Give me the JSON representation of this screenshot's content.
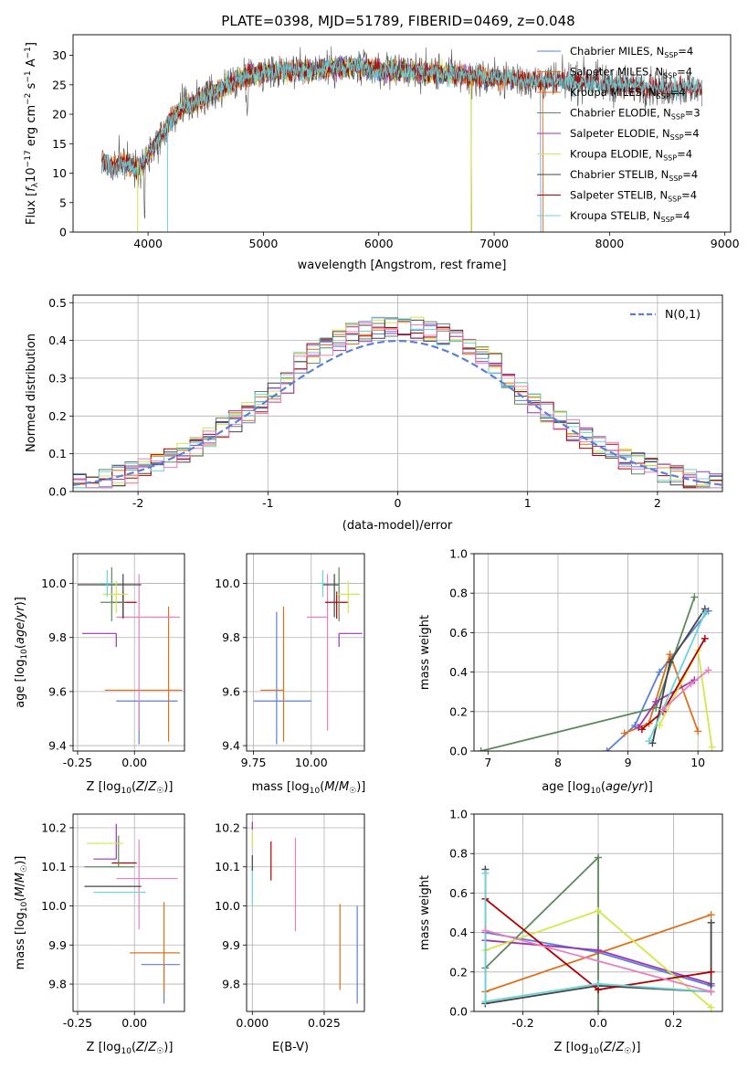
{
  "figure_title": "PLATE=0398, MJD=51789, FIBERID=0469, z=0.048",
  "colors": {
    "chabrier_miles": "#5b7fd6",
    "salpeter_miles": "#e0701a",
    "kroupa_miles": "#e0701a",
    "chabrier_elodie": "#5a8a5a",
    "salpeter_elodie": "#9b35b3",
    "kroupa_elodie": "#d4e64a",
    "chabrier_stelib": "#444444",
    "salpeter_stelib": "#b00000",
    "kroupa_stelib": "#6dd3d8",
    "extra_pink": "#e87fc0",
    "gaussian": "#5b7fd6"
  },
  "chart_data": [
    {
      "id": "spectrum",
      "type": "line",
      "title": "PLATE=0398, MJD=51789, FIBERID=0469, z=0.048",
      "xlabel": "wavelength [Angstrom, rest frame]",
      "ylabel": "Flux [f_λ 10^-17 erg cm^-2 s^-1 A^-1]",
      "xlim": [
        3350,
        9050
      ],
      "ylim": [
        0,
        33.5
      ],
      "xticks": [
        4000,
        5000,
        6000,
        7000,
        8000,
        9000
      ],
      "yticks": [
        0,
        5,
        10,
        15,
        20,
        25,
        30
      ],
      "grid": false,
      "legend_position": "upper-right",
      "continuum": {
        "x": [
          3600,
          3700,
          3800,
          3900,
          4000,
          4100,
          4200,
          4300,
          4400,
          4500,
          4600,
          4700,
          4800,
          4900,
          5000,
          5200,
          5400,
          5600,
          5800,
          6000,
          6200,
          6400,
          6600,
          6800,
          7000,
          7200,
          7400,
          7600,
          7800,
          8000,
          8200,
          8400,
          8600,
          8800
        ],
        "y": [
          12,
          11,
          12,
          10.5,
          13,
          16,
          19,
          21,
          22,
          23,
          24,
          25,
          26,
          27,
          27,
          27.5,
          27.5,
          28,
          28,
          27.5,
          27.5,
          27,
          27,
          26.5,
          26,
          26,
          25.5,
          25.5,
          25.5,
          25,
          25,
          24.5,
          24.5,
          24.5
        ]
      },
      "series": [
        {
          "name": "Chabrier MILES, N_SSP=4",
          "legend_main": "Chabrier MILES, N",
          "legend_sub": "SSP",
          "legend_tail": "=4",
          "color_key": "chabrier_miles",
          "x_range": [
            3600,
            7400
          ]
        },
        {
          "name": "Salpeter MILES, N_SSP=4",
          "legend_main": "Salpeter MILES, N",
          "legend_sub": "SSP",
          "legend_tail": "=4",
          "color_key": "salpeter_miles",
          "x_range": [
            3600,
            7420
          ]
        },
        {
          "name": "Kroupa MILES, N_SSP=4",
          "legend_main": "Kroupa MILES, N",
          "legend_sub": "SSP",
          "legend_tail": "=4",
          "color_key": "kroupa_miles",
          "x_range": [
            3600,
            7420
          ]
        },
        {
          "name": "Chabrier ELODIE, N_SSP=3",
          "legend_main": "Chabrier ELODIE, N",
          "legend_sub": "SSP",
          "legend_tail": "=3",
          "color_key": "chabrier_elodie",
          "x_range": [
            3900,
            6800
          ]
        },
        {
          "name": "Salpeter ELODIE, N_SSP=4",
          "legend_main": "Salpeter ELODIE, N",
          "legend_sub": "SSP",
          "legend_tail": "=4",
          "color_key": "salpeter_elodie",
          "x_range": [
            3900,
            6800
          ]
        },
        {
          "name": "Kroupa ELODIE, N_SSP=4",
          "legend_main": "Kroupa ELODIE, N",
          "legend_sub": "SSP",
          "legend_tail": "=4",
          "color_key": "kroupa_elodie",
          "x_range": [
            3900,
            6800
          ]
        },
        {
          "name": "Chabrier STELIB, N_SSP=4",
          "legend_main": "Chabrier STELIB, N",
          "legend_sub": "SSP",
          "legend_tail": "=4",
          "color_key": "chabrier_stelib",
          "x_range": [
            3600,
            8800
          ]
        },
        {
          "name": "Salpeter STELIB, N_SSP=4",
          "legend_main": "Salpeter STELIB, N",
          "legend_sub": "SSP",
          "legend_tail": "=4",
          "color_key": "salpeter_stelib",
          "x_range": [
            3600,
            8800
          ]
        },
        {
          "name": "Kroupa STELIB, N_SSP=4",
          "legend_main": "Kroupa STELIB, N",
          "legend_sub": "SSP",
          "legend_tail": "=4",
          "color_key": "kroupa_stelib",
          "x_range": [
            3600,
            8800
          ]
        }
      ]
    },
    {
      "id": "residuals",
      "type": "area",
      "xlabel": "(data-model)/error",
      "ylabel": "Normed distribution",
      "xlim": [
        -2.5,
        2.5
      ],
      "ylim": [
        0,
        0.52
      ],
      "xticks": [
        -2,
        -1,
        0,
        1,
        2
      ],
      "yticks": [
        0.0,
        0.1,
        0.2,
        0.3,
        0.4,
        0.5
      ],
      "grid": true,
      "legend_position": "upper-right",
      "legend": "N(0,1)",
      "histogram_bin_width": 0.1,
      "reference_curve": "gaussian mean 0 sigma 1"
    },
    {
      "id": "age_vs_Z",
      "type": "scatter",
      "xlabel": "Z [log10(Z/Z☉)]",
      "ylabel": "age [log10(age/yr)]",
      "xlim": [
        -0.27,
        0.22
      ],
      "ylim": [
        9.38,
        10.11
      ],
      "xticks": [
        -0.25,
        0.0
      ],
      "yticks": [
        9.4,
        9.6,
        9.8,
        10.0
      ],
      "grid": true,
      "points": [
        {
          "color_key": "chabrier_miles",
          "x": 0.02,
          "xerr": [
            0.1,
            0.17
          ],
          "y": 9.565,
          "yerr": [
            0.16,
            0.0
          ]
        },
        {
          "color_key": "salpeter_miles",
          "x": 0.15,
          "xerr": [
            0.28,
            0.06
          ],
          "y": 9.605,
          "yerr": [
            0.19,
            0.31
          ]
        },
        {
          "color_key": "extra_pink",
          "x": 0.02,
          "xerr": [
            0.1,
            0.18
          ],
          "y": 9.875,
          "yerr": [
            0.42,
            0.16
          ]
        },
        {
          "color_key": "salpeter_elodie",
          "x": -0.08,
          "xerr": [
            0.15,
            0.0
          ],
          "y": 9.815,
          "yerr": [
            0.05,
            0.0
          ]
        },
        {
          "color_key": "salpeter_stelib",
          "x": -0.05,
          "xerr": [
            0.05,
            0.06
          ],
          "y": 9.93,
          "yerr": [
            0.06,
            0.04
          ]
        },
        {
          "color_key": "chabrier_stelib",
          "x": -0.05,
          "xerr": [
            0.2,
            0.08
          ],
          "y": 9.995,
          "yerr": [
            0.12,
            0.04
          ]
        },
        {
          "color_key": "chabrier_elodie",
          "x": -0.1,
          "xerr": [
            0.05,
            0.06
          ],
          "y": 9.93,
          "yerr": [
            0.07,
            0.13
          ]
        },
        {
          "color_key": "kroupa_elodie",
          "x": -0.08,
          "xerr": [
            0.06,
            0.05
          ],
          "y": 9.96,
          "yerr": [
            0.07,
            0.05
          ]
        },
        {
          "color_key": "kroupa_stelib",
          "x": -0.12,
          "xerr": [
            0.03,
            0.03
          ],
          "y": 10.0,
          "yerr": [
            0.05,
            0.05
          ]
        }
      ]
    },
    {
      "id": "age_vs_mass",
      "type": "scatter",
      "xlabel": "mass [log10(M/M☉)]",
      "ylabel": "",
      "xlim": [
        9.72,
        10.23
      ],
      "ylim": [
        9.38,
        10.11
      ],
      "xticks": [
        9.75,
        10.0
      ],
      "yticks": [
        9.4,
        9.6,
        9.8,
        10.0
      ],
      "grid": true,
      "points": [
        {
          "color_key": "chabrier_miles",
          "x": 9.85,
          "xerr": [
            0.1,
            0.15
          ],
          "y": 9.565,
          "yerr": [
            0.16,
            0.33
          ]
        },
        {
          "color_key": "salpeter_miles",
          "x": 9.88,
          "xerr": [
            0.1,
            0.0
          ],
          "y": 9.605,
          "yerr": [
            0.19,
            0.31
          ]
        },
        {
          "color_key": "extra_pink",
          "x": 10.07,
          "xerr": [
            0.09,
            0.0
          ],
          "y": 9.875,
          "yerr": [
            0.42,
            0.16
          ]
        },
        {
          "color_key": "salpeter_elodie",
          "x": 10.12,
          "xerr": [
            0.0,
            0.1
          ],
          "y": 9.815,
          "yerr": [
            0.05,
            0.0
          ]
        },
        {
          "color_key": "salpeter_stelib",
          "x": 10.11,
          "xerr": [
            0.05,
            0.05
          ],
          "y": 9.93,
          "yerr": [
            0.06,
            0.04
          ]
        },
        {
          "color_key": "chabrier_stelib",
          "x": 10.1,
          "xerr": [
            0.05,
            0.02
          ],
          "y": 9.995,
          "yerr": [
            0.12,
            0.04
          ]
        },
        {
          "color_key": "chabrier_elodie",
          "x": 10.12,
          "xerr": [
            0.0,
            0.0
          ],
          "y": 9.93,
          "yerr": [
            0.07,
            0.13
          ]
        },
        {
          "color_key": "kroupa_elodie",
          "x": 10.16,
          "xerr": [
            0.05,
            0.05
          ],
          "y": 9.96,
          "yerr": [
            0.07,
            0.05
          ]
        },
        {
          "color_key": "kroupa_stelib",
          "x": 10.05,
          "xerr": [
            0.02,
            0.02
          ],
          "y": 10.0,
          "yerr": [
            0.05,
            0.05
          ]
        }
      ]
    },
    {
      "id": "weight_vs_age",
      "type": "line",
      "xlabel": "age [log10(age/yr)]",
      "ylabel": "mass weight",
      "xlim": [
        6.8,
        10.35
      ],
      "ylim": [
        0,
        1.0
      ],
      "xticks": [
        7,
        8,
        9,
        10
      ],
      "yticks": [
        0.0,
        0.2,
        0.4,
        0.6,
        0.8,
        1.0
      ],
      "grid": true,
      "series": [
        {
          "color_key": "chabrier_miles",
          "x": [
            8.7,
            9.1,
            9.45,
            10.15
          ],
          "y": [
            0.0,
            0.13,
            0.4,
            0.71
          ]
        },
        {
          "color_key": "salpeter_miles",
          "x": [
            8.95,
            9.3,
            9.6,
            10.0
          ],
          "y": [
            0.09,
            0.14,
            0.49,
            0.1
          ]
        },
        {
          "color_key": "chabrier_elodie",
          "x": [
            6.9,
            9.4,
            9.95
          ],
          "y": [
            0.0,
            0.22,
            0.78
          ]
        },
        {
          "color_key": "salpeter_elodie",
          "x": [
            9.15,
            9.4,
            9.95
          ],
          "y": [
            0.12,
            0.25,
            0.36
          ]
        },
        {
          "color_key": "kroupa_elodie",
          "x": [
            9.45,
            10.0,
            10.2
          ],
          "y": [
            0.13,
            0.51,
            0.02
          ]
        },
        {
          "color_key": "chabrier_stelib",
          "x": [
            9.35,
            9.6,
            10.1
          ],
          "y": [
            0.04,
            0.45,
            0.72
          ]
        },
        {
          "color_key": "salpeter_stelib",
          "x": [
            9.2,
            9.5,
            10.1
          ],
          "y": [
            0.11,
            0.2,
            0.57
          ]
        },
        {
          "color_key": "kroupa_stelib",
          "x": [
            9.3,
            10.1
          ],
          "y": [
            0.05,
            0.7
          ]
        },
        {
          "color_key": "extra_pink",
          "x": [
            9.5,
            9.9,
            10.15
          ],
          "y": [
            0.21,
            0.34,
            0.41
          ]
        }
      ]
    },
    {
      "id": "mass_vs_Z",
      "type": "scatter",
      "xlabel": "Z [log10(Z/Z☉)]",
      "ylabel": "mass [log10(M/M☉)]",
      "xlim": [
        -0.27,
        0.22
      ],
      "ylim": [
        9.73,
        10.235
      ],
      "xticks": [
        -0.25,
        0.0
      ],
      "yticks": [
        9.8,
        9.9,
        10.0,
        10.1,
        10.2
      ],
      "grid": true,
      "points": [
        {
          "color_key": "chabrier_miles",
          "x": 0.13,
          "xerr": [
            0.1,
            0.07
          ],
          "y": 9.85,
          "yerr": [
            0.1,
            0.0
          ]
        },
        {
          "color_key": "salpeter_miles",
          "x": 0.13,
          "xerr": [
            0.15,
            0.07
          ],
          "y": 9.88,
          "yerr": [
            0.1,
            0.13
          ]
        },
        {
          "color_key": "extra_pink",
          "x": 0.02,
          "xerr": [
            0.1,
            0.17
          ],
          "y": 10.07,
          "yerr": [
            0.13,
            0.1
          ]
        },
        {
          "color_key": "salpeter_elodie",
          "x": -0.08,
          "xerr": [
            0.1,
            0.0
          ],
          "y": 10.12,
          "yerr": [
            0.0,
            0.09
          ]
        },
        {
          "color_key": "salpeter_stelib",
          "x": -0.05,
          "xerr": [
            0.05,
            0.06
          ],
          "y": 10.11,
          "yerr": [
            0.0,
            0.0
          ]
        },
        {
          "color_key": "chabrier_stelib",
          "x": -0.09,
          "xerr": [
            0.13,
            0.12
          ],
          "y": 10.05,
          "yerr": [
            0.0,
            0.0
          ]
        },
        {
          "color_key": "chabrier_elodie",
          "x": -0.07,
          "xerr": [
            0.15,
            0.07
          ],
          "y": 10.1,
          "yerr": [
            0.0,
            0.08
          ]
        },
        {
          "color_key": "kroupa_elodie",
          "x": -0.11,
          "xerr": [
            0.1,
            0.06
          ],
          "y": 10.16,
          "yerr": [
            0.0,
            0.0
          ]
        },
        {
          "color_key": "kroupa_stelib",
          "x": -0.1,
          "xerr": [
            0.08,
            0.15
          ],
          "y": 10.035,
          "yerr": [
            0.0,
            0.0
          ]
        }
      ]
    },
    {
      "id": "mass_vs_EBV",
      "type": "scatter",
      "xlabel": "E(B-V)",
      "ylabel": "",
      "xlim": [
        -0.002,
        0.039
      ],
      "ylim": [
        9.73,
        10.235
      ],
      "xticks": [
        0.0,
        0.025
      ],
      "yticks": [
        9.8,
        9.9,
        10.0,
        10.1,
        10.2
      ],
      "grid": true,
      "points": [
        {
          "color_key": "chabrier_miles",
          "x": 0.0365,
          "y": 9.875,
          "yerr": [
            0.125,
            0.125
          ]
        },
        {
          "color_key": "salpeter_miles",
          "x": 0.0305,
          "y": 9.895,
          "yerr": [
            0.11,
            0.11
          ]
        },
        {
          "color_key": "extra_pink",
          "x": 0.015,
          "y": 10.055,
          "yerr": [
            0.12,
            0.12
          ]
        },
        {
          "color_key": "salpeter_stelib",
          "x": 0.0065,
          "y": 10.115,
          "yerr": [
            0.05,
            0.05
          ]
        },
        {
          "color_key": "salpeter_elodie",
          "x": 0.0,
          "y": 10.205,
          "yerr": [
            0.01,
            0.01
          ]
        },
        {
          "color_key": "kroupa_stelib",
          "x": 0.0,
          "y": 10.05,
          "yerr": [
            0.05,
            0.05
          ]
        },
        {
          "color_key": "chabrier_stelib",
          "x": 0.0,
          "y": 10.11,
          "yerr": [
            0.02,
            0.02
          ]
        },
        {
          "color_key": "kroupa_elodie",
          "x": 0.0,
          "y": 10.17,
          "yerr": [
            0.02,
            0.02
          ]
        }
      ]
    },
    {
      "id": "weight_vs_Z",
      "type": "line",
      "xlabel": "Z [log10(Z/Z☉)]",
      "ylabel": "mass weight",
      "xlim": [
        -0.33,
        0.33
      ],
      "ylim": [
        0,
        1.0
      ],
      "xticks": [
        -0.2,
        0.0,
        0.2
      ],
      "yticks": [
        0.0,
        0.2,
        0.4,
        0.6,
        0.8,
        1.0
      ],
      "grid": true,
      "series": [
        {
          "color_key": "chabrier_miles",
          "x": [
            -0.3,
            0.0,
            0.3
          ],
          "y": [
            0.4,
            0.3,
            0.13
          ]
        },
        {
          "color_key": "salpeter_miles",
          "x": [
            -0.3,
            0.3
          ],
          "y": [
            0.1,
            0.49
          ]
        },
        {
          "color_key": "chabrier_elodie",
          "x": [
            -0.3,
            0.0,
            0.0
          ],
          "y": [
            0.22,
            0.78,
            0.0
          ]
        },
        {
          "color_key": "salpeter_elodie",
          "x": [
            -0.3,
            0.0,
            0.3
          ],
          "y": [
            0.36,
            0.31,
            0.14
          ]
        },
        {
          "color_key": "kroupa_elodie",
          "x": [
            -0.3,
            0.0,
            0.3
          ],
          "y": [
            0.31,
            0.51,
            0.02
          ]
        },
        {
          "color_key": "chabrier_stelib",
          "x": [
            -0.3,
            -0.3,
            0.0,
            0.3,
            0.3
          ],
          "y": [
            0.72,
            0.04,
            0.13,
            0.1,
            0.45
          ]
        },
        {
          "color_key": "salpeter_stelib",
          "x": [
            -0.3,
            0.0,
            0.3
          ],
          "y": [
            0.57,
            0.11,
            0.2
          ]
        },
        {
          "color_key": "kroupa_stelib",
          "x": [
            -0.3,
            -0.3,
            0.0,
            0.3
          ],
          "y": [
            0.7,
            0.05,
            0.14,
            0.1
          ]
        },
        {
          "color_key": "extra_pink",
          "x": [
            -0.3,
            0.3
          ],
          "y": [
            0.41,
            0.1
          ]
        }
      ]
    }
  ]
}
